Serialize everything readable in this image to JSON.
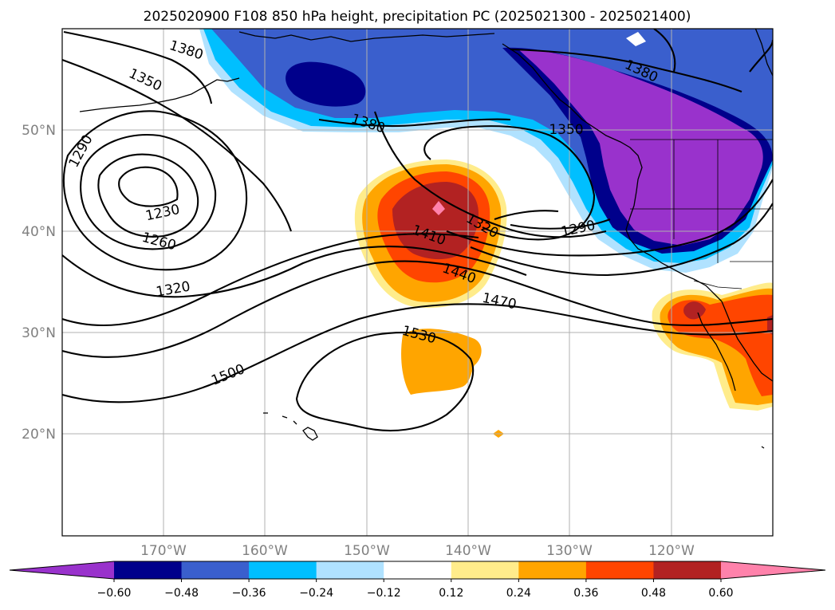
{
  "map": {
    "title": "2025020900 F108 850 hPa height, precipitation PC (2025021300 - 2025021400)",
    "lat_labels": [
      "50°N",
      "40°N",
      "30°N",
      "20°N"
    ],
    "lon_labels": [
      "170°W",
      "160°W",
      "150°W",
      "140°W",
      "130°W",
      "120°W"
    ],
    "contour_labels": [
      "1380",
      "1350",
      "1290",
      "1230",
      "1260",
      "1320",
      "1500",
      "1380",
      "1410",
      "1320",
      "1440",
      "1470",
      "1530",
      "1350",
      "1290",
      "1380"
    ],
    "grid": true
  },
  "colorbar": {
    "ticks": [
      "−0.60",
      "−0.48",
      "−0.36",
      "−0.24",
      "−0.12",
      "0.12",
      "0.24",
      "0.36",
      "0.48",
      "0.60"
    ],
    "colors": [
      "#9932cc",
      "#00008b",
      "#3a5fcd",
      "#00bfff",
      "#b0e2ff",
      "#ffffff",
      "#ffec8b",
      "#ffa500",
      "#ff4500",
      "#b22222",
      "#ff82ab"
    ],
    "extend": "both"
  }
}
